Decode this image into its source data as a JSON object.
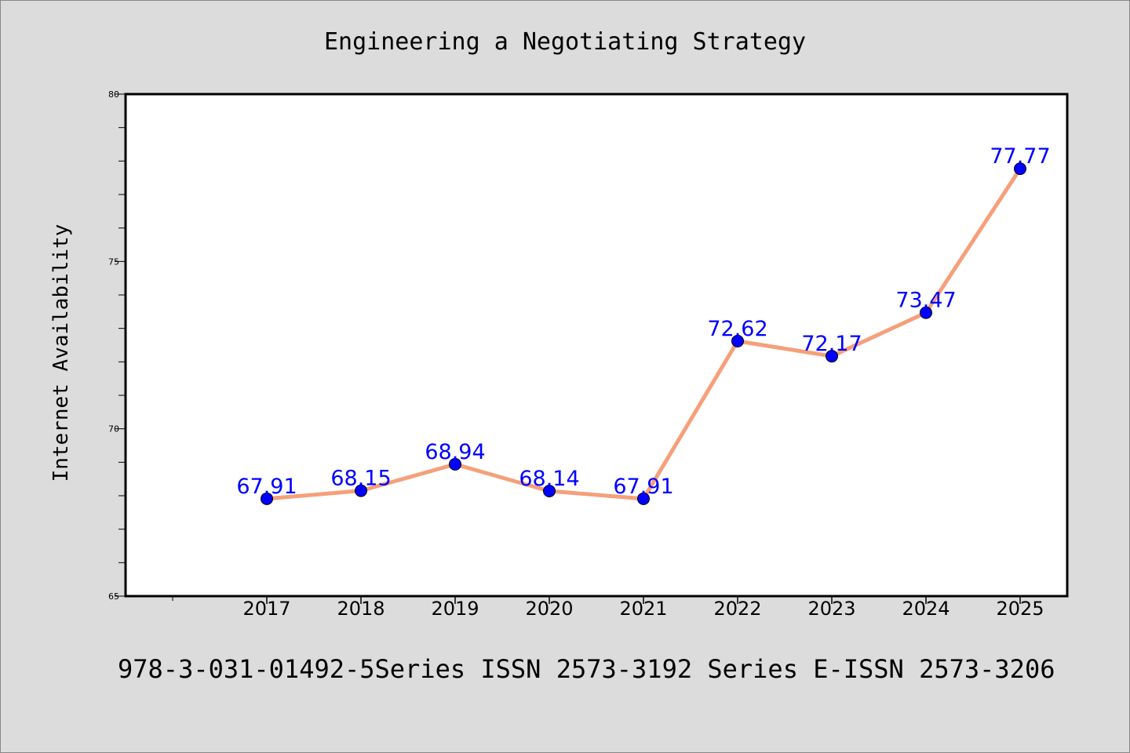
{
  "chart_data": {
    "type": "line",
    "title": "Engineering a Negotiating Strategy",
    "xlabel": "",
    "ylabel": "Internet Availability",
    "categories": [
      "2017",
      "2018",
      "2019",
      "2020",
      "2021",
      "2022",
      "2023",
      "2024",
      "2025"
    ],
    "series": [
      {
        "name": "",
        "values": [
          67.91,
          68.15,
          68.94,
          68.14,
          67.91,
          72.62,
          72.17,
          73.47,
          77.77
        ],
        "labels": [
          "67.91",
          "68.15",
          "68.94",
          "68.14",
          "67.91",
          "72.62",
          "72.17",
          "73.47",
          "77.77"
        ]
      }
    ],
    "ylim": [
      65,
      80
    ],
    "y_ticks": [
      65,
      70,
      75,
      80
    ],
    "y_tick_labels": [
      "65",
      "70",
      "75",
      "80"
    ],
    "grid": false,
    "legend": "none",
    "colors": {
      "line": "#f5a07a",
      "marker": "#0000ff",
      "data_label": "#0000ff",
      "background": "#dcdcdc",
      "plot_background": "#ffffff",
      "axes": "#000000"
    }
  },
  "footer": {
    "text": "978-3-031-01492-5Series ISSN 2573-3192 Series E-ISSN 2573-3206"
  }
}
